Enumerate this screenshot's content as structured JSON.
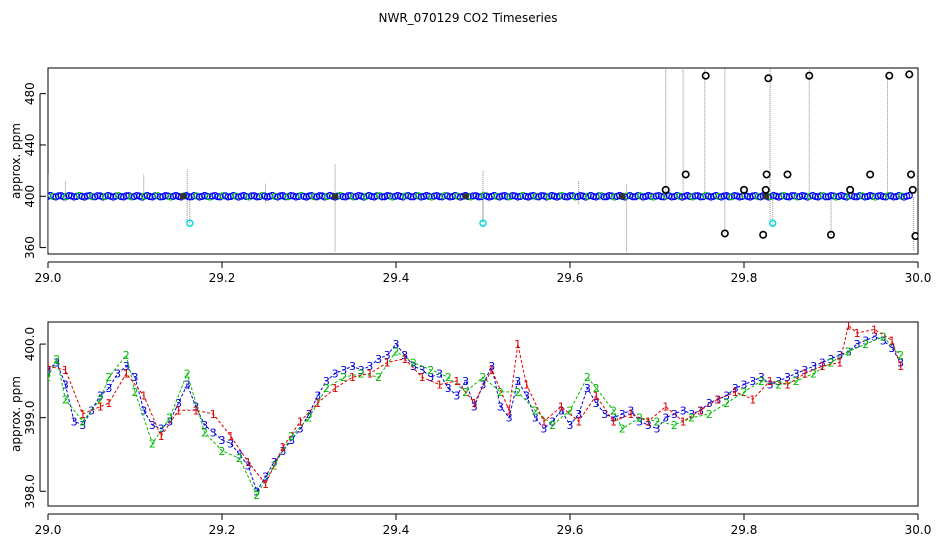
{
  "title": "NWR_070129  CO2 Timeseries",
  "chart_data": [
    {
      "type": "scatter",
      "ylabel": "approx. ppm",
      "xlim": [
        29.0,
        30.0
      ],
      "ylim": [
        355,
        500
      ],
      "x_ticks": [
        "29.0",
        "29.2",
        "29.4",
        "29.6",
        "29.8",
        "30.0"
      ],
      "x_tick_values": [
        29.0,
        29.2,
        29.4,
        29.6,
        29.8,
        30.0
      ],
      "y_ticks": [
        "360",
        "400",
        "440",
        "480"
      ],
      "y_tick_values": [
        360,
        400,
        440,
        480
      ],
      "colors": {
        "main": "#0000ff",
        "alt": "#00cc00",
        "outlier": "#000000",
        "flag": "#00dddd",
        "spike": "#888888"
      },
      "baseline": {
        "x_start": 29.0,
        "x_end": 29.99,
        "value": 400
      },
      "spikes": [
        {
          "x": 29.0,
          "low": 357,
          "high": 417
        },
        {
          "x": 29.02,
          "low": 396,
          "high": 412
        },
        {
          "x": 29.11,
          "low": 396,
          "high": 417
        },
        {
          "x": 29.16,
          "low": 380,
          "high": 421
        },
        {
          "x": 29.25,
          "low": 395,
          "high": 410
        },
        {
          "x": 29.33,
          "low": 357,
          "high": 425
        },
        {
          "x": 29.5,
          "low": 380,
          "high": 420
        },
        {
          "x": 29.61,
          "low": 394,
          "high": 412
        },
        {
          "x": 29.665,
          "low": 357,
          "high": 410
        },
        {
          "x": 29.71,
          "low": 400,
          "high": 500
        },
        {
          "x": 29.73,
          "low": 400,
          "high": 500
        },
        {
          "x": 29.755,
          "low": 400,
          "high": 500
        },
        {
          "x": 29.778,
          "low": 371,
          "high": 500
        },
        {
          "x": 29.83,
          "low": 380,
          "high": 500
        },
        {
          "x": 29.875,
          "low": 400,
          "high": 500
        },
        {
          "x": 29.9,
          "low": 370,
          "high": 400
        },
        {
          "x": 29.965,
          "low": 400,
          "high": 494
        },
        {
          "x": 29.995,
          "low": 358,
          "high": 400
        }
      ],
      "outliers": [
        {
          "x": 29.71,
          "y": 405
        },
        {
          "x": 29.733,
          "y": 417
        },
        {
          "x": 29.756,
          "y": 494
        },
        {
          "x": 29.778,
          "y": 371
        },
        {
          "x": 29.8,
          "y": 405
        },
        {
          "x": 29.822,
          "y": 370
        },
        {
          "x": 29.825,
          "y": 405
        },
        {
          "x": 29.826,
          "y": 417
        },
        {
          "x": 29.828,
          "y": 492
        },
        {
          "x": 29.85,
          "y": 417
        },
        {
          "x": 29.875,
          "y": 494
        },
        {
          "x": 29.9,
          "y": 370
        },
        {
          "x": 29.922,
          "y": 405
        },
        {
          "x": 29.945,
          "y": 417
        },
        {
          "x": 29.967,
          "y": 494
        },
        {
          "x": 29.99,
          "y": 495
        },
        {
          "x": 29.992,
          "y": 417
        },
        {
          "x": 29.994,
          "y": 405
        },
        {
          "x": 29.997,
          "y": 369
        }
      ],
      "flagged": [
        {
          "x": 29.163,
          "y": 379
        },
        {
          "x": 29.5,
          "y": 379
        },
        {
          "x": 29.833,
          "y": 379
        }
      ]
    },
    {
      "type": "scatter",
      "ylabel": "approx. ppm",
      "xlim": [
        29.0,
        30.0
      ],
      "ylim": [
        397.8,
        400.3
      ],
      "x_ticks": [
        "29.0",
        "29.2",
        "29.4",
        "29.6",
        "29.8",
        "30.0"
      ],
      "x_tick_values": [
        29.0,
        29.2,
        29.4,
        29.6,
        29.8,
        30.0
      ],
      "y_ticks": [
        "398.0",
        "399.0",
        "400.0"
      ],
      "y_tick_values": [
        398.0,
        399.0,
        400.0
      ],
      "marker_labels": [
        "1",
        "2",
        "3"
      ],
      "marker_colors": {
        "1": "#dd0000",
        "2": "#00bb00",
        "3": "#0000dd"
      },
      "series": [
        {
          "marker": "3",
          "points": [
            [
              29.0,
              399.65
            ],
            [
              29.01,
              399.75
            ],
            [
              29.02,
              399.45
            ],
            [
              29.03,
              398.95
            ],
            [
              29.04,
              398.9
            ],
            [
              29.05,
              399.1
            ],
            [
              29.06,
              399.3
            ],
            [
              29.07,
              399.4
            ],
            [
              29.08,
              399.6
            ],
            [
              29.09,
              399.7
            ],
            [
              29.1,
              399.55
            ],
            [
              29.11,
              399.1
            ],
            [
              29.12,
              398.9
            ],
            [
              29.13,
              398.85
            ],
            [
              29.14,
              398.95
            ],
            [
              29.15,
              399.2
            ],
            [
              29.16,
              399.45
            ],
            [
              29.17,
              399.15
            ],
            [
              29.18,
              398.9
            ],
            [
              29.19,
              398.8
            ],
            [
              29.2,
              398.7
            ],
            [
              29.21,
              398.65
            ],
            [
              29.22,
              398.5
            ],
            [
              29.23,
              398.35
            ],
            [
              29.24,
              398.0
            ],
            [
              29.25,
              398.2
            ],
            [
              29.26,
              398.4
            ],
            [
              29.27,
              398.55
            ],
            [
              29.28,
              398.7
            ],
            [
              29.29,
              398.85
            ],
            [
              29.3,
              399.05
            ],
            [
              29.31,
              399.3
            ],
            [
              29.32,
              399.5
            ],
            [
              29.33,
              399.6
            ],
            [
              29.34,
              399.65
            ],
            [
              29.35,
              399.7
            ],
            [
              29.36,
              399.65
            ],
            [
              29.37,
              399.7
            ],
            [
              29.38,
              399.8
            ],
            [
              29.39,
              399.85
            ],
            [
              29.4,
              400.0
            ],
            [
              29.41,
              399.85
            ],
            [
              29.42,
              399.7
            ],
            [
              29.43,
              399.65
            ],
            [
              29.44,
              399.55
            ],
            [
              29.45,
              399.6
            ],
            [
              29.46,
              399.4
            ],
            [
              29.47,
              399.3
            ],
            [
              29.48,
              399.5
            ],
            [
              29.49,
              399.15
            ],
            [
              29.5,
              399.45
            ],
            [
              29.51,
              399.7
            ],
            [
              29.52,
              399.15
            ],
            [
              29.53,
              399.0
            ],
            [
              29.54,
              399.5
            ],
            [
              29.55,
              399.3
            ],
            [
              29.56,
              399.0
            ],
            [
              29.57,
              398.85
            ],
            [
              29.58,
              398.95
            ],
            [
              29.59,
              399.1
            ],
            [
              29.6,
              398.9
            ],
            [
              29.61,
              399.05
            ],
            [
              29.62,
              399.4
            ],
            [
              29.63,
              399.2
            ],
            [
              29.64,
              399.05
            ],
            [
              29.65,
              399.0
            ],
            [
              29.66,
              399.05
            ],
            [
              29.67,
              399.1
            ],
            [
              29.68,
              398.95
            ],
            [
              29.69,
              398.9
            ],
            [
              29.7,
              398.85
            ],
            [
              29.71,
              399.0
            ],
            [
              29.72,
              399.05
            ],
            [
              29.73,
              399.1
            ],
            [
              29.74,
              399.05
            ],
            [
              29.75,
              399.1
            ],
            [
              29.76,
              399.2
            ],
            [
              29.77,
              399.25
            ],
            [
              29.78,
              399.3
            ],
            [
              29.79,
              399.4
            ],
            [
              29.8,
              399.45
            ],
            [
              29.81,
              399.5
            ],
            [
              29.82,
              399.55
            ],
            [
              29.83,
              399.45
            ],
            [
              29.84,
              399.5
            ],
            [
              29.85,
              399.55
            ],
            [
              29.86,
              399.6
            ],
            [
              29.87,
              399.65
            ],
            [
              29.88,
              399.7
            ],
            [
              29.89,
              399.75
            ],
            [
              29.9,
              399.8
            ],
            [
              29.91,
              399.85
            ],
            [
              29.92,
              399.9
            ],
            [
              29.93,
              400.0
            ],
            [
              29.94,
              400.05
            ],
            [
              29.95,
              400.1
            ],
            [
              29.96,
              400.05
            ],
            [
              29.97,
              399.95
            ],
            [
              29.98,
              399.75
            ]
          ]
        },
        {
          "marker": "2",
          "points": [
            [
              29.0,
              399.55
            ],
            [
              29.01,
              399.8
            ],
            [
              29.02,
              399.25
            ],
            [
              29.04,
              398.95
            ],
            [
              29.06,
              399.25
            ],
            [
              29.07,
              399.55
            ],
            [
              29.09,
              399.85
            ],
            [
              29.1,
              399.35
            ],
            [
              29.12,
              398.65
            ],
            [
              29.14,
              399.0
            ],
            [
              29.16,
              399.6
            ],
            [
              29.18,
              398.8
            ],
            [
              29.2,
              398.55
            ],
            [
              29.22,
              398.45
            ],
            [
              29.24,
              397.95
            ],
            [
              29.26,
              398.35
            ],
            [
              29.28,
              398.75
            ],
            [
              29.3,
              399.0
            ],
            [
              29.32,
              399.4
            ],
            [
              29.34,
              399.55
            ],
            [
              29.36,
              399.6
            ],
            [
              29.38,
              399.55
            ],
            [
              29.4,
              399.9
            ],
            [
              29.42,
              399.75
            ],
            [
              29.44,
              399.65
            ],
            [
              29.46,
              399.55
            ],
            [
              29.48,
              399.35
            ],
            [
              29.5,
              399.55
            ],
            [
              29.52,
              399.35
            ],
            [
              29.54,
              399.35
            ],
            [
              29.56,
              399.1
            ],
            [
              29.58,
              398.9
            ],
            [
              29.6,
              399.1
            ],
            [
              29.62,
              399.55
            ],
            [
              29.63,
              399.4
            ],
            [
              29.65,
              399.1
            ],
            [
              29.66,
              398.85
            ],
            [
              29.68,
              399.0
            ],
            [
              29.7,
              398.95
            ],
            [
              29.72,
              398.9
            ],
            [
              29.74,
              399.0
            ],
            [
              29.76,
              399.05
            ],
            [
              29.78,
              399.2
            ],
            [
              29.8,
              399.35
            ],
            [
              29.82,
              399.5
            ],
            [
              29.84,
              399.45
            ],
            [
              29.86,
              399.5
            ],
            [
              29.88,
              399.6
            ],
            [
              29.9,
              399.75
            ],
            [
              29.92,
              399.9
            ],
            [
              29.94,
              400.0
            ],
            [
              29.96,
              400.1
            ],
            [
              29.98,
              399.85
            ]
          ]
        },
        {
          "marker": "1",
          "points": [
            [
              29.0,
              399.7
            ],
            [
              29.02,
              399.65
            ],
            [
              29.04,
              399.05
            ],
            [
              29.06,
              399.15
            ],
            [
              29.07,
              399.2
            ],
            [
              29.09,
              399.6
            ],
            [
              29.11,
              399.3
            ],
            [
              29.13,
              398.75
            ],
            [
              29.15,
              399.1
            ],
            [
              29.17,
              399.1
            ],
            [
              29.19,
              399.05
            ],
            [
              29.21,
              398.75
            ],
            [
              29.23,
              398.4
            ],
            [
              29.25,
              398.1
            ],
            [
              29.27,
              398.6
            ],
            [
              29.29,
              398.95
            ],
            [
              29.31,
              399.2
            ],
            [
              29.33,
              399.4
            ],
            [
              29.35,
              399.55
            ],
            [
              29.37,
              399.6
            ],
            [
              29.39,
              399.75
            ],
            [
              29.41,
              399.8
            ],
            [
              29.43,
              399.55
            ],
            [
              29.45,
              399.45
            ],
            [
              29.47,
              399.5
            ],
            [
              29.49,
              399.2
            ],
            [
              29.51,
              399.65
            ],
            [
              29.53,
              399.1
            ],
            [
              29.54,
              400.0
            ],
            [
              29.55,
              399.45
            ],
            [
              29.57,
              398.95
            ],
            [
              29.59,
              399.15
            ],
            [
              29.61,
              398.95
            ],
            [
              29.63,
              399.3
            ],
            [
              29.65,
              398.95
            ],
            [
              29.67,
              399.05
            ],
            [
              29.69,
              398.95
            ],
            [
              29.71,
              399.15
            ],
            [
              29.73,
              398.95
            ],
            [
              29.75,
              399.1
            ],
            [
              29.77,
              399.25
            ],
            [
              29.79,
              399.35
            ],
            [
              29.81,
              399.25
            ],
            [
              29.83,
              399.5
            ],
            [
              29.85,
              399.45
            ],
            [
              29.87,
              399.6
            ],
            [
              29.89,
              399.7
            ],
            [
              29.91,
              399.75
            ],
            [
              29.92,
              400.25
            ],
            [
              29.93,
              400.15
            ],
            [
              29.95,
              400.2
            ],
            [
              29.97,
              400.05
            ],
            [
              29.98,
              399.7
            ]
          ]
        }
      ]
    }
  ]
}
